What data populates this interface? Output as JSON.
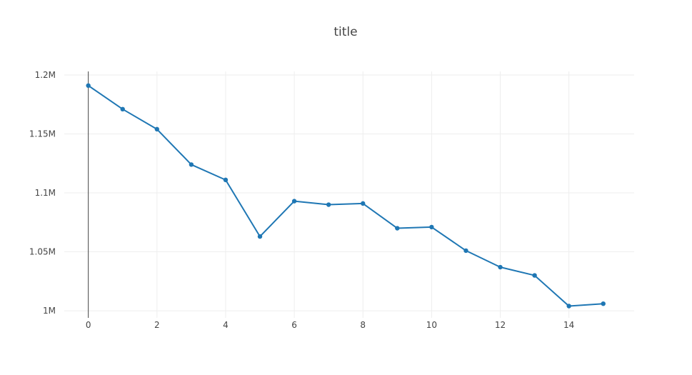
{
  "chart_data": {
    "type": "line",
    "title": "title",
    "xlabel": "",
    "ylabel": "",
    "x": [
      0,
      1,
      2,
      3,
      4,
      5,
      6,
      7,
      8,
      9,
      10,
      11,
      12,
      13,
      14,
      15
    ],
    "series": [
      {
        "values": [
          1191000,
          1171000,
          1154000,
          1124000,
          1111000,
          1063000,
          1093000,
          1090000,
          1091000,
          1070000,
          1071000,
          1051000,
          1037000,
          1030000,
          1004000,
          1006000
        ]
      }
    ],
    "xlim": [
      -0.7,
      15.9
    ],
    "ylim": [
      994000,
      1203000
    ],
    "x_ticks": [
      0,
      2,
      4,
      6,
      8,
      10,
      12,
      14
    ],
    "x_tick_labels": [
      "0",
      "2",
      "4",
      "6",
      "8",
      "10",
      "12",
      "14"
    ],
    "y_ticks": [
      1000000,
      1050000,
      1100000,
      1150000,
      1200000
    ],
    "y_tick_labels": [
      "1M",
      "1.05M",
      "1.1M",
      "1.15M",
      "1.2M"
    ],
    "grid": true,
    "legend": "none",
    "colors": {
      "line": "#1f77b4",
      "grid": "#eeeeee",
      "zero_line": "#444444",
      "text": "#444444"
    }
  }
}
